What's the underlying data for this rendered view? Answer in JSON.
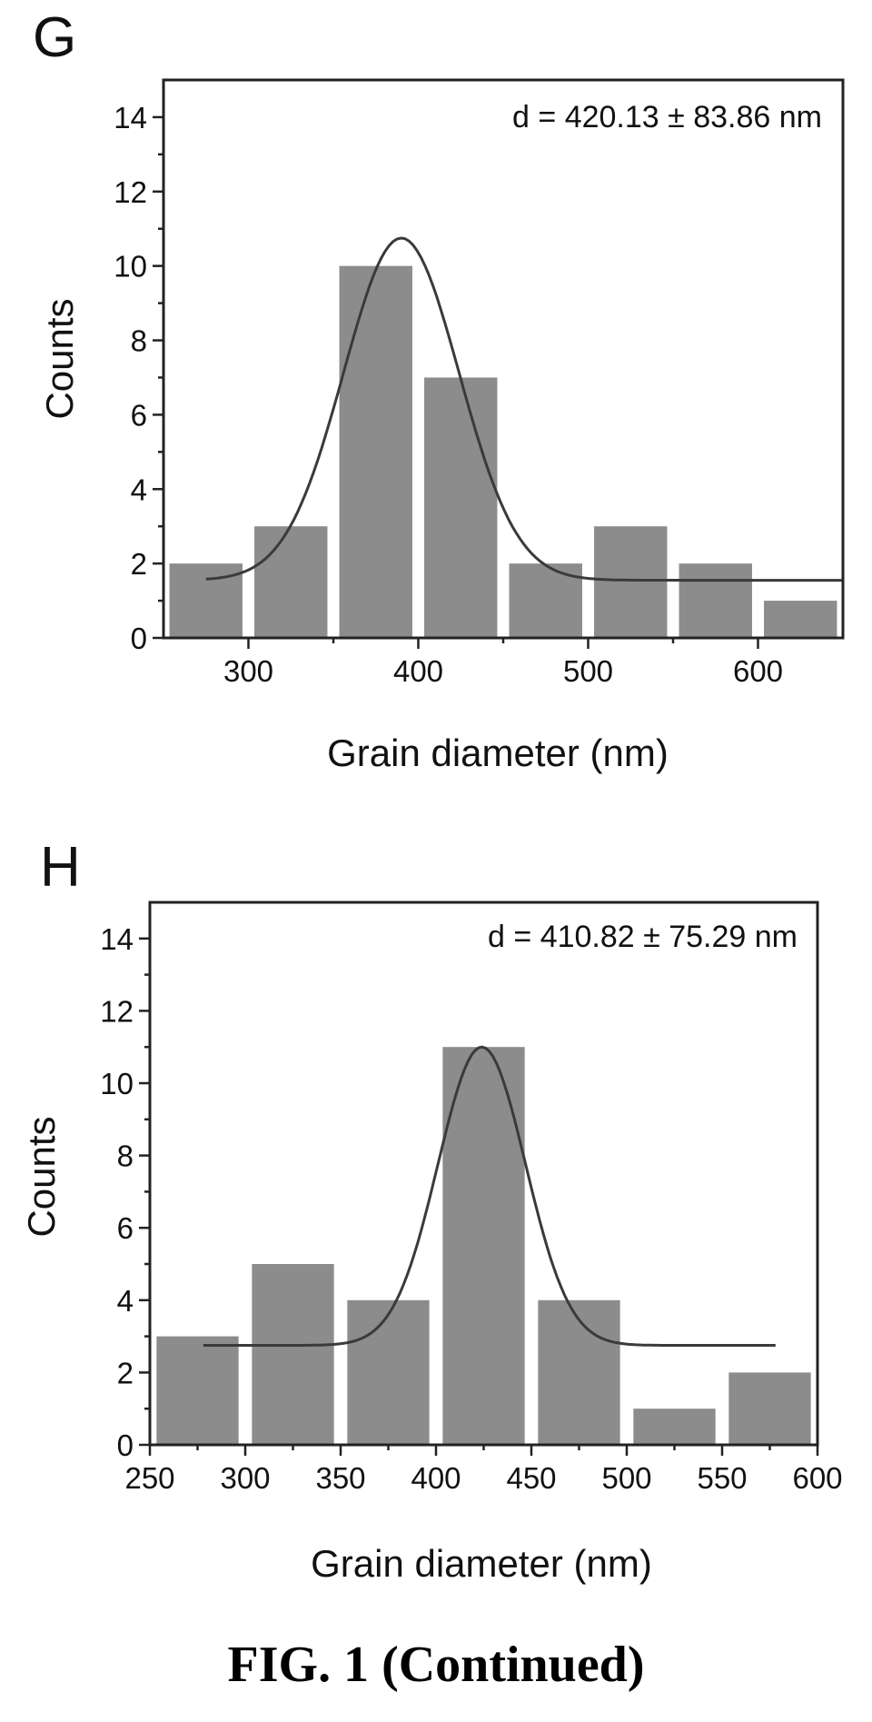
{
  "figure_caption": "FIG. 1 (Continued)",
  "chart_data": [
    {
      "type": "bar",
      "panel": "G",
      "annotation": "d = 420.13 ± 83.86 nm",
      "xlabel": "Grain diameter (nm)",
      "ylabel": "Counts",
      "xlim": [
        250,
        650
      ],
      "ylim": [
        0,
        15
      ],
      "xticks": [
        300,
        400,
        500,
        600
      ],
      "yticks": [
        0,
        2,
        4,
        6,
        8,
        10,
        12,
        14
      ],
      "bin_width": 50,
      "bin_centers": [
        275,
        325,
        375,
        425,
        475,
        525,
        575,
        625
      ],
      "values": [
        2,
        3,
        10,
        7,
        2,
        3,
        2,
        1
      ],
      "fit": {
        "type": "gaussian",
        "center": 390,
        "sigma": 34,
        "baseline": 1.55,
        "peak": 10.75,
        "x_range": [
          275,
          650
        ]
      }
    },
    {
      "type": "bar",
      "panel": "H",
      "annotation": "d = 410.82 ± 75.29 nm",
      "xlabel": "Grain diameter (nm)",
      "ylabel": "Counts",
      "xlim": [
        250,
        600
      ],
      "ylim": [
        0,
        15
      ],
      "xticks": [
        250,
        300,
        350,
        400,
        450,
        500,
        550,
        600
      ],
      "yticks": [
        0,
        2,
        4,
        6,
        8,
        10,
        12,
        14
      ],
      "bin_width": 50,
      "bin_centers": [
        275,
        325,
        375,
        425,
        475,
        525,
        575
      ],
      "values": [
        3,
        5,
        4,
        11,
        4,
        1,
        2
      ],
      "fit": {
        "type": "gaussian",
        "center": 424,
        "sigma": 23,
        "baseline": 2.75,
        "peak": 11.0,
        "x_range": [
          278,
          578
        ]
      }
    }
  ]
}
